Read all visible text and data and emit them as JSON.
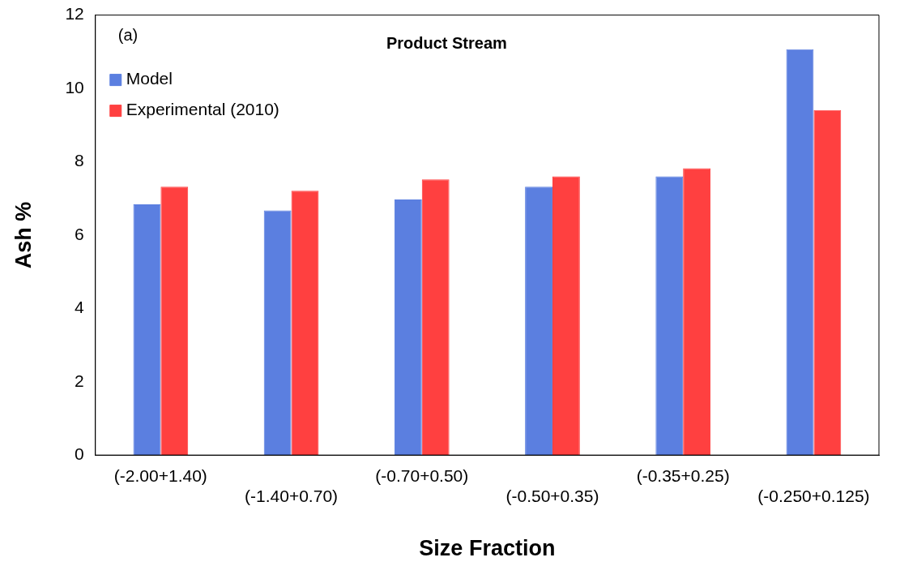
{
  "chart_data": {
    "type": "bar",
    "title": "Product Stream",
    "xlabel": "Size Fraction",
    "ylabel": "Ash %",
    "categories": [
      "(-2.00+1.40)",
      "(-1.40+0.70)",
      "(-0.70+0.50)",
      "(-0.50+0.35)",
      "(-0.35+0.25)",
      "(-0.250+0.125)"
    ],
    "series": [
      {
        "name": "Model",
        "color": "#5b7fe0",
        "values": [
          6.84,
          6.67,
          6.97,
          7.32,
          7.6,
          11.07
        ]
      },
      {
        "name": "Experimental (2010)",
        "color": "#ff4040",
        "values": [
          7.32,
          7.21,
          7.52,
          7.6,
          7.82,
          9.41
        ]
      }
    ],
    "ylim": [
      0,
      12
    ],
    "yticks": [
      0,
      2,
      4,
      6,
      8,
      10,
      12
    ],
    "grid": false,
    "legend": "top left",
    "annotations": [
      "(a)"
    ]
  }
}
